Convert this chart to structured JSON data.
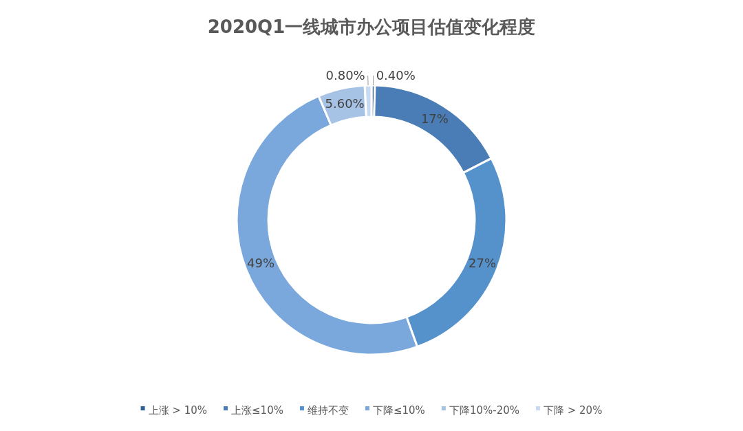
{
  "chart_data": {
    "type": "donut",
    "title": "2020Q1一线城市办公项目估值变化程度",
    "categories": [
      "上涨 > 10%",
      "上涨≤10%",
      "维持不变",
      "下降≤10%",
      "下降10%-20%",
      "下降 > 20%"
    ],
    "values": [
      0.4,
      17,
      27,
      49,
      5.6,
      0.8
    ],
    "value_labels": [
      "0.40%",
      "17%",
      "27%",
      "49%",
      "5.60%",
      "0.80%"
    ],
    "colors": [
      "#2f5f94",
      "#4a7db5",
      "#5592cb",
      "#7aa8dc",
      "#a6c3e6",
      "#c8daf1"
    ],
    "legend": "bottom"
  }
}
